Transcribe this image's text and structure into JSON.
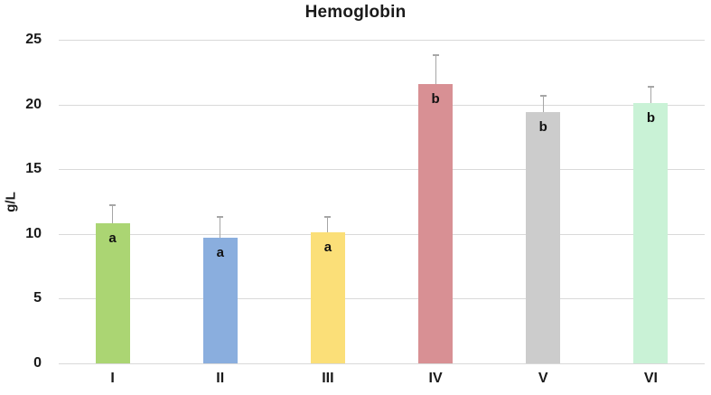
{
  "chart_data": {
    "type": "bar",
    "title": "Hemoglobin",
    "ylabel": "g/L",
    "xlabel": "",
    "ylim": [
      0,
      25
    ],
    "yticks": [
      0,
      5,
      10,
      15,
      20,
      25
    ],
    "grid": "horizontal-only",
    "legend_position": "none",
    "categories": [
      "I",
      "II",
      "III",
      "IV",
      "V",
      "VI"
    ],
    "values": [
      10.8,
      9.7,
      10.1,
      21.6,
      19.4,
      20.1
    ],
    "error_bars_plus": [
      1.4,
      1.6,
      1.2,
      2.2,
      1.3,
      1.3
    ],
    "sig_letters": [
      "a",
      "a",
      "a",
      "b",
      "b",
      "b"
    ],
    "bar_colors": [
      "#abd573",
      "#8aaede",
      "#fbdf78",
      "#d89094",
      "#cccccc",
      "#c9f2d6"
    ],
    "gridline_color": "#d9d9d9",
    "error_bar_color": "#a6a6a6",
    "text_color": "#1a1a1a",
    "background_color": "#ffffff"
  }
}
